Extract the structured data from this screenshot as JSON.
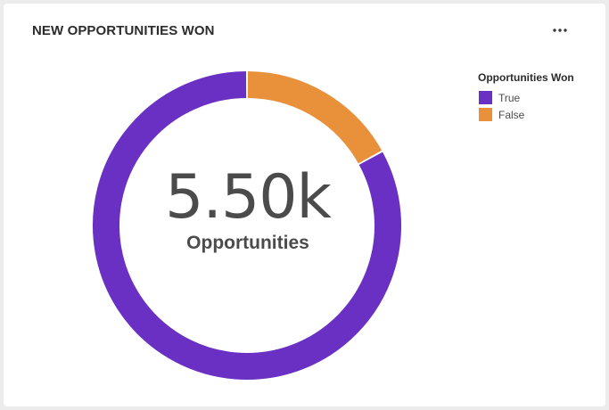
{
  "card": {
    "title": "NEW OPPORTUNITIES WON",
    "more_icon": "more-horizontal-icon"
  },
  "chart_data": {
    "type": "pie",
    "variant": "donut",
    "categories": [
      "True",
      "False"
    ],
    "values": [
      4565,
      935
    ],
    "colors": [
      "#6930C3",
      "#E8903A"
    ],
    "total_display": "5.50k",
    "total_label": "Opportunities",
    "legend": {
      "title": "Opportunities Won",
      "placement": "top-right",
      "items": [
        "True",
        "False"
      ]
    }
  }
}
